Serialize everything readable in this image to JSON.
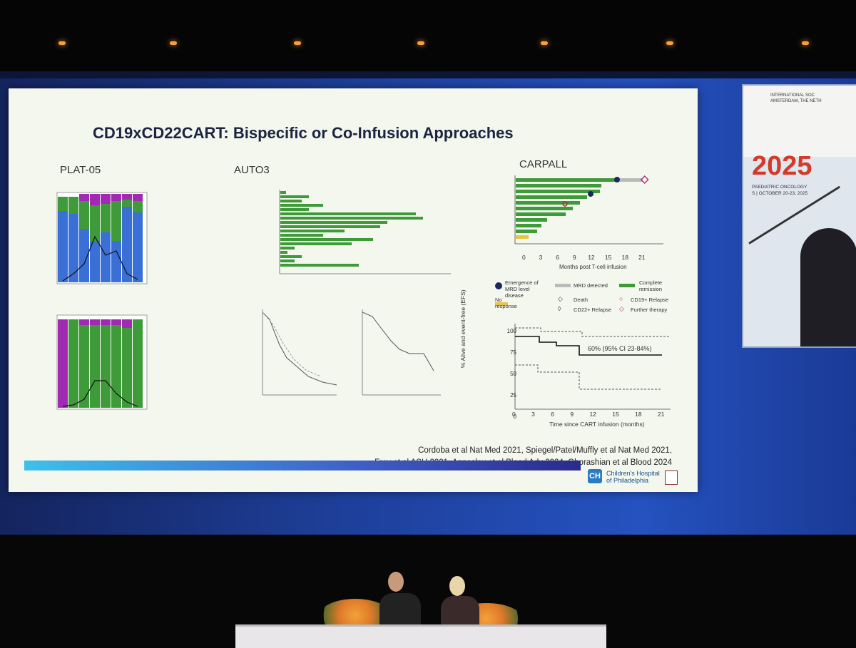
{
  "slide": {
    "title": "CD19xCD22CART: Bispecific or Co-Infusion Approaches",
    "panels": [
      {
        "label": "PLAT-05"
      },
      {
        "label": "AUTO3"
      },
      {
        "label": "CARPALL"
      }
    ],
    "carpall_chart": {
      "x_axis_label": "Months post T-cell infusion",
      "x_ticks": [
        "0",
        "3",
        "6",
        "9",
        "12",
        "15",
        "18",
        "21"
      ],
      "legend": [
        "Emergence of MRD level disease",
        "MRD detected",
        "Complete remission",
        "No response",
        "Death",
        "CD22+ Relapse",
        "CD19+ Relapse",
        "Further therapy"
      ]
    },
    "efs_chart": {
      "y_axis_label": "% Alive and event-free (EFS)",
      "x_axis_label": "Time since CART infusion (months)",
      "y_ticks": [
        "0",
        "25",
        "50",
        "75",
        "100"
      ],
      "x_ticks": [
        "0",
        "3",
        "6",
        "9",
        "12",
        "15",
        "18",
        "21"
      ],
      "annotation": "60% (95% CI 23-84%)"
    },
    "references": [
      "Cordoba et al Nat Med 2021, Spiegel/Patel/Muffly et al Nat Med 2021,",
      "Frey et al ASH 2021, Annesley et al Blood Adv 2024, Ghorashian et al Blood 2024"
    ],
    "logo": {
      "mark": "CH",
      "line1": "Children's Hospital",
      "line2": "of Philadelphia"
    }
  },
  "side_screen": {
    "line1": "INTERNATIONAL SOC",
    "line2": "AMSTERDAM, THE NETH",
    "year": "2025",
    "line3": "PAEDIATRIC ONCOLOGY",
    "line4": "S | OCTOBER 20-23, 2025"
  },
  "colors": {
    "slide_bg": "#f4f7ee",
    "green": "#3f9a3a",
    "purple": "#a02ab2",
    "blue": "#3a6fd6",
    "screen_blue": "#2552c0"
  }
}
